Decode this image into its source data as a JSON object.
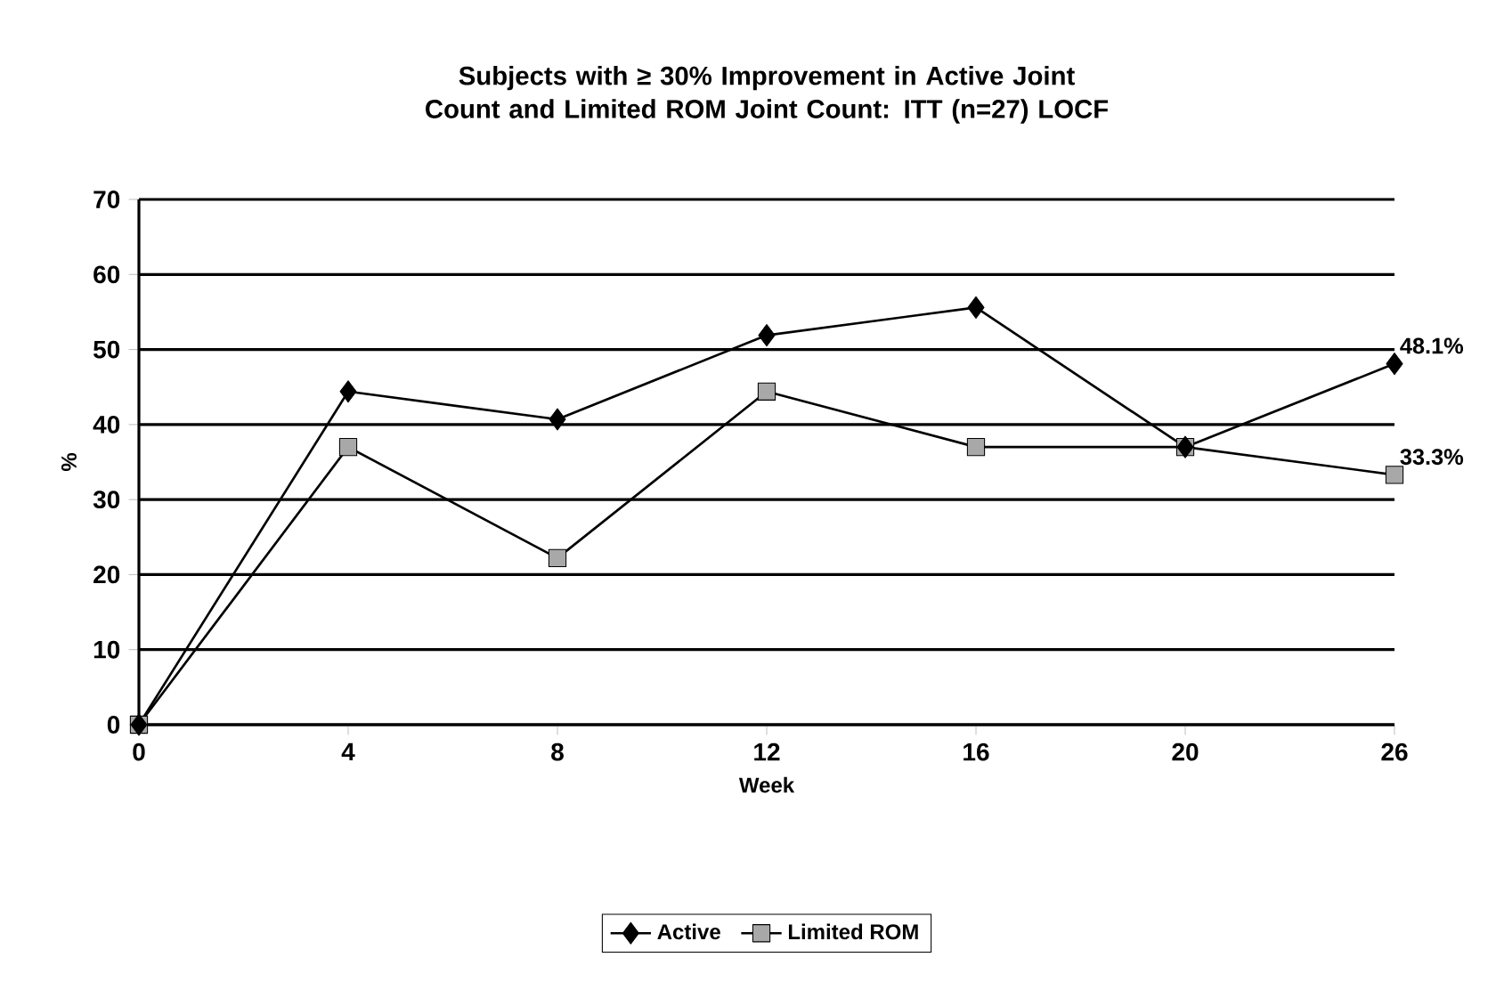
{
  "chart_data": {
    "type": "line",
    "title": "Subjects with ≥ 30% Improvement in Active Joint Count and Limited ROM Joint Count: ITT (n=27) LOCF",
    "xlabel": "Week",
    "ylabel": "%",
    "categories": [
      "0",
      "4",
      "8",
      "12",
      "16",
      "20",
      "26"
    ],
    "series": [
      {
        "name": "Active",
        "color": "#000000",
        "marker": "diamond",
        "values": [
          0,
          44.4,
          40.7,
          51.9,
          55.6,
          37.0,
          48.1
        ],
        "value_labels": [
          null,
          null,
          null,
          null,
          null,
          null,
          "48.1%"
        ]
      },
      {
        "name": "Limited ROM",
        "color": "#a8a8a8",
        "marker": "square",
        "values": [
          0,
          37.0,
          22.2,
          44.4,
          37.0,
          37.0,
          33.3
        ],
        "value_labels": [
          null,
          null,
          null,
          null,
          null,
          null,
          "33.3%"
        ]
      }
    ],
    "ylim": [
      0,
      70
    ],
    "yticks": [
      0,
      10,
      20,
      30,
      40,
      50,
      60,
      70
    ],
    "grid": "y",
    "legend": "bottom"
  }
}
